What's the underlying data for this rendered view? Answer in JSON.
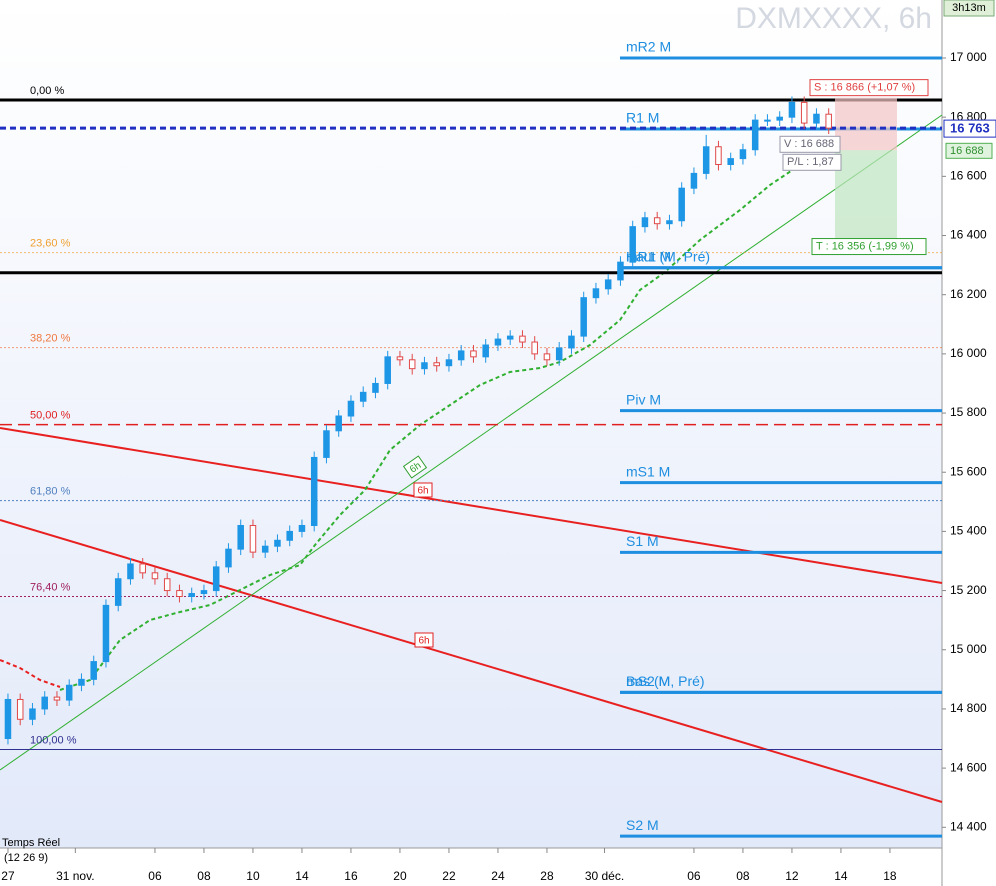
{
  "chart_data": {
    "type": "candlestick",
    "title": "DXMXXXX, 6h",
    "timer": "3h13m",
    "footer_source": "Temps Réel",
    "footer_params": "(12 26 9)",
    "xlim": [
      -0.65,
      76.25
    ],
    "xticks": [
      {
        "value": 0,
        "label": "27"
      },
      {
        "value": 5.5,
        "label": "31 nov."
      },
      {
        "value": 12,
        "label": "06"
      },
      {
        "value": 16,
        "label": "08"
      },
      {
        "value": 20,
        "label": "10"
      },
      {
        "value": 24,
        "label": "14"
      },
      {
        "value": 28,
        "label": "16"
      },
      {
        "value": 32,
        "label": "20"
      },
      {
        "value": 36,
        "label": "22"
      },
      {
        "value": 40,
        "label": "24"
      },
      {
        "value": 44,
        "label": "28"
      },
      {
        "value": 48.7,
        "label": "30 déc."
      },
      {
        "value": 56,
        "label": "06"
      },
      {
        "value": 60,
        "label": "08"
      },
      {
        "value": 64,
        "label": "12"
      },
      {
        "value": 68,
        "label": "14"
      },
      {
        "value": 72,
        "label": "18"
      }
    ],
    "ylim": [
      14330,
      17196
    ],
    "yticks": [
      {
        "value": 14400,
        "label": "14 400"
      },
      {
        "value": 14600,
        "label": "14 600"
      },
      {
        "value": 14800,
        "label": "14 800"
      },
      {
        "value": 15000,
        "label": "15 000"
      },
      {
        "value": 15200,
        "label": "15 200"
      },
      {
        "value": 15400,
        "label": "15 400"
      },
      {
        "value": 15600,
        "label": "15 600"
      },
      {
        "value": 15800,
        "label": "15 800"
      },
      {
        "value": 16000,
        "label": "16 000"
      },
      {
        "value": 16200,
        "label": "16 200"
      },
      {
        "value": 16400,
        "label": "16 400"
      },
      {
        "value": 16600,
        "label": "16 600"
      },
      {
        "value": 16800,
        "label": "16 800"
      },
      {
        "value": 17000,
        "label": "17 000"
      }
    ],
    "up_color": "#1e96e6",
    "down_color": "#e04848",
    "open": [
      14700,
      14832,
      14765,
      14800,
      14840,
      14830,
      14880,
      14900,
      14960,
      15150,
      15240,
      15290,
      15260,
      15240,
      15200,
      15180,
      15190,
      15200,
      15280,
      15340,
      15420,
      15330,
      15350,
      15370,
      15400,
      15420,
      15650,
      15740,
      15790,
      15840,
      15870,
      15900,
      15990,
      15980,
      15950,
      15970,
      15960,
      15980,
      16010,
      15990,
      16030,
      16050,
      16060,
      16040,
      16000,
      15980,
      16020,
      16060,
      16190,
      16220,
      16250,
      16310,
      16430,
      16460,
      16440,
      16450,
      16560,
      16610,
      16700,
      16640,
      16660,
      16690,
      16790,
      16790,
      16800,
      16850,
      16780,
      16810
    ],
    "high": [
      14852,
      14852,
      14820,
      14860,
      14860,
      14900,
      14920,
      14980,
      15170,
      15260,
      15310,
      15310,
      15280,
      15260,
      15220,
      15210,
      15220,
      15300,
      15360,
      15440,
      15440,
      15370,
      15390,
      15420,
      15440,
      15670,
      15760,
      15810,
      15860,
      15890,
      15920,
      16010,
      16010,
      16000,
      15990,
      15990,
      16000,
      16030,
      16030,
      16050,
      16070,
      16080,
      16080,
      16060,
      16020,
      16040,
      16080,
      16210,
      16240,
      16270,
      16330,
      16450,
      16480,
      16480,
      16470,
      16580,
      16630,
      16740,
      16720,
      16680,
      16710,
      16810,
      16810,
      16820,
      16870,
      16870,
      16830,
      16830
    ],
    "low": [
      14680,
      14745,
      14745,
      14780,
      14810,
      14810,
      14860,
      14880,
      14940,
      15130,
      15220,
      15240,
      15220,
      15180,
      15160,
      15160,
      15170,
      15180,
      15260,
      15320,
      15310,
      15310,
      15330,
      15350,
      15380,
      15400,
      15630,
      15720,
      15770,
      15820,
      15850,
      15880,
      15960,
      15930,
      15930,
      15940,
      15940,
      15960,
      15970,
      15970,
      16010,
      16030,
      16020,
      15980,
      15960,
      15960,
      16000,
      16040,
      16170,
      16200,
      16230,
      16290,
      16410,
      16420,
      16420,
      16430,
      16540,
      16590,
      16620,
      16620,
      16640,
      16670,
      16770,
      16770,
      16780,
      16760,
      16760,
      16743
    ],
    "close": [
      14832,
      14765,
      14800,
      14840,
      14830,
      14880,
      14900,
      14960,
      15150,
      15240,
      15290,
      15260,
      15240,
      15200,
      15180,
      15190,
      15200,
      15280,
      15340,
      15420,
      15330,
      15350,
      15370,
      15400,
      15420,
      15650,
      15740,
      15790,
      15840,
      15870,
      15900,
      15990,
      15980,
      15950,
      15970,
      15960,
      15980,
      16010,
      15990,
      16030,
      16050,
      16060,
      16040,
      16000,
      15980,
      16020,
      16060,
      16190,
      16220,
      16250,
      16310,
      16430,
      16460,
      16440,
      16450,
      16560,
      16610,
      16700,
      16640,
      16660,
      16690,
      16790,
      16790,
      16800,
      16850,
      16780,
      16810,
      16763
    ],
    "pivots": [
      {
        "name": "mR2 M",
        "value": 17000
      },
      {
        "name": "R1 M",
        "value": 16760
      },
      {
        "name": "Haut (M, Pré)",
        "value": 16291
      },
      {
        "name": "mR1 M",
        "value": 16291
      },
      {
        "name": "Piv M",
        "value": 15808
      },
      {
        "name": "mS1 M",
        "value": 15565
      },
      {
        "name": "S1 M",
        "value": 15329
      },
      {
        "name": "Bas (M, Pré)",
        "value": 14856
      },
      {
        "name": "mS2 M",
        "value": 14856
      },
      {
        "name": "S2 M",
        "value": 14370
      }
    ],
    "fibs": [
      {
        "label": "0,00 %",
        "value": 16858,
        "color": "#000000"
      },
      {
        "label": "23,60 %",
        "value": 16342,
        "color": "#f0a030"
      },
      {
        "label": "38,20 %",
        "value": 16021,
        "color": "#f07840"
      },
      {
        "label": "50,00 %",
        "value": 15761,
        "color": "#e02020"
      },
      {
        "label": "61,80 %",
        "value": 15504,
        "color": "#5080c0"
      },
      {
        "label": "76,40 %",
        "value": 15180,
        "color": "#a02060"
      },
      {
        "label": "100,00 %",
        "value": 14663,
        "color": "#303090"
      }
    ],
    "range_high": 16274,
    "last_price": {
      "value": 16763,
      "label": "16 763"
    },
    "entry_tag": {
      "value": 16688,
      "label": "16 688"
    },
    "trade": {
      "stop": {
        "value": 16866,
        "label": "S : 16 866 (+1,07 %)"
      },
      "entry": {
        "value": 16688,
        "label": "V : 16 688"
      },
      "pl": "P/L : 1,87",
      "target": {
        "value": 16356,
        "label": "T : 16 356 (-1,99 %)"
      }
    },
    "line_tags": [
      "6h",
      "6h",
      "6h"
    ]
  }
}
